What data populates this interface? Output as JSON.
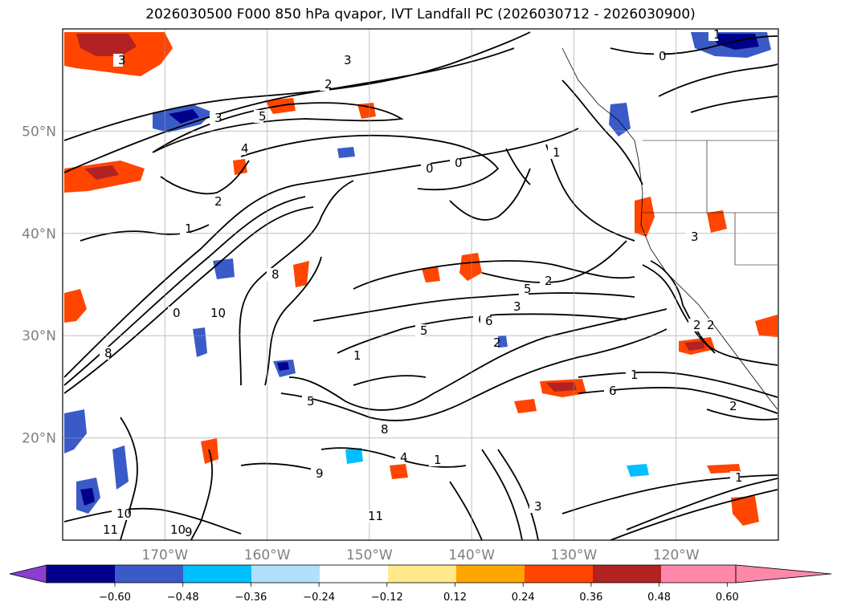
{
  "title": "2026030500 F000 850 hPa qvapor, IVT Landfall PC (2026030712 - 2026030900)",
  "map": {
    "lon_range": [
      -180,
      -110
    ],
    "lat_range": [
      10,
      60
    ],
    "lat_ticks": [
      {
        "value": 20,
        "label": "20°N"
      },
      {
        "value": 30,
        "label": "30°N"
      },
      {
        "value": 40,
        "label": "40°N"
      },
      {
        "value": 50,
        "label": "50°N"
      }
    ],
    "lon_ticks": [
      {
        "value": -170,
        "label": "170°W"
      },
      {
        "value": -160,
        "label": "160°W"
      },
      {
        "value": -150,
        "label": "150°W"
      },
      {
        "value": -140,
        "label": "140°W"
      },
      {
        "value": -130,
        "label": "130°W"
      },
      {
        "value": -120,
        "label": "120°W"
      }
    ],
    "gridlines": true,
    "contour_labels": [
      "1",
      "3",
      "0",
      "3",
      "2",
      "3",
      "5",
      "4",
      "0",
      "0",
      "1",
      "2",
      "5",
      "3",
      "2",
      "1",
      "1",
      "0",
      "1",
      "2",
      "6",
      "5",
      "8",
      "10",
      "8",
      "6",
      "1",
      "2",
      "2",
      "1",
      "9",
      "9",
      "10",
      "11",
      "11",
      "10",
      "1",
      "2",
      "3",
      "4",
      "5",
      "6",
      "8",
      "3"
    ]
  },
  "colorbar": {
    "orientation": "horizontal",
    "extend": "both",
    "colors": [
      "#8a3fd1",
      "#00008b",
      "#3a5bc7",
      "#00bfff",
      "#b0e0fa",
      "#ffffff",
      "#ffe98c",
      "#ffa500",
      "#ff4500",
      "#b22222",
      "#ff88aa"
    ],
    "tick_labels": [
      "−0.60",
      "−0.48",
      "−0.36",
      "−0.24",
      "−0.12",
      "0.12",
      "0.24",
      "0.36",
      "0.48",
      "0.60"
    ]
  }
}
